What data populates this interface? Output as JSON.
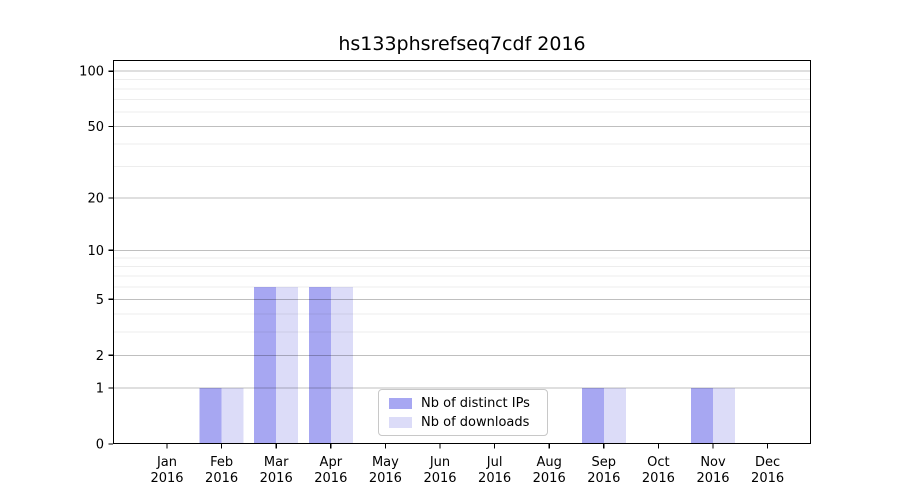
{
  "chart_data": {
    "type": "bar",
    "title": "hs133phsrefseq7cdf 2016",
    "year_label": "2016",
    "categories": [
      "Jan",
      "Feb",
      "Mar",
      "Apr",
      "May",
      "Jun",
      "Jul",
      "Aug",
      "Sep",
      "Oct",
      "Nov",
      "Dec"
    ],
    "series": [
      {
        "name": "Nb of distinct IPs",
        "color": "#a7a7f2",
        "values": [
          0,
          1,
          6,
          6,
          0,
          0,
          0,
          0,
          1,
          0,
          1,
          0
        ]
      },
      {
        "name": "Nb of downloads",
        "color": "#dcdcf8",
        "values": [
          0,
          1,
          6,
          6,
          0,
          0,
          0,
          0,
          1,
          0,
          1,
          0
        ]
      }
    ],
    "yscale": "log1p",
    "ylim": [
      0,
      115
    ],
    "y_ticks": [
      0,
      1,
      2,
      5,
      10,
      20,
      50,
      100
    ],
    "y_minor_gridlines": [
      3,
      4,
      6,
      7,
      8,
      9,
      30,
      40,
      60,
      70,
      80,
      90
    ],
    "grid": true,
    "legend_position": "lower center",
    "axis_color": "#000000",
    "grid_color": "#000000",
    "background_color": "#ffffff"
  }
}
